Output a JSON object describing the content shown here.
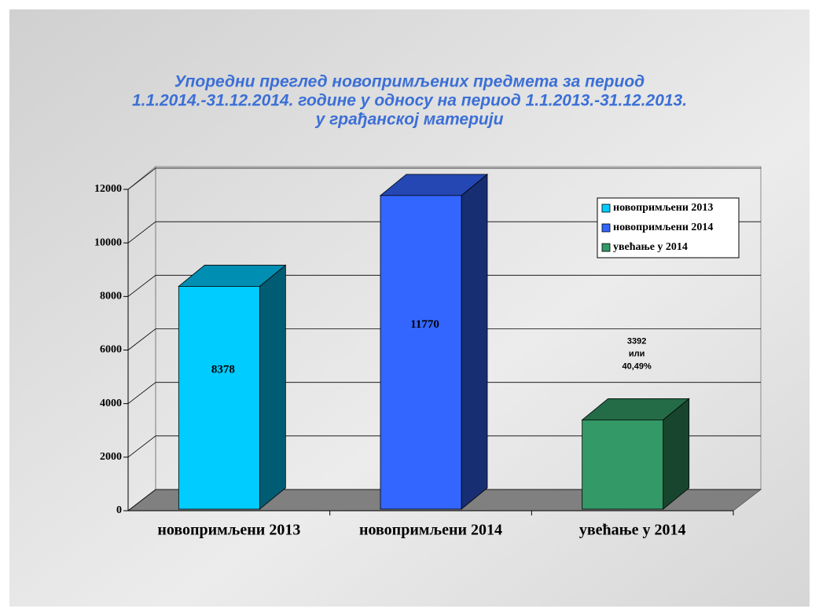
{
  "chart_data": {
    "type": "bar3d",
    "title": [
      "Упоредни преглед новопримљених предмета за период",
      "1.1.2014.-31.12.2014. године у односу на период 1.1.2013.-31.12.2013.",
      "у грађанској материји"
    ],
    "categories": [
      "новопримљени 2013",
      "новопримљени 2014",
      "увећање у 2014"
    ],
    "values": [
      8378,
      11770,
      3392
    ],
    "value_labels": [
      "8378",
      "11770",
      "3392 или 40,49%"
    ],
    "colors": [
      "#00ccff",
      "#3366ff",
      "#339966"
    ],
    "ylim": [
      0,
      12000
    ],
    "yticks": [
      0,
      2000,
      4000,
      6000,
      8000,
      10000,
      12000
    ],
    "grid": true,
    "legend": "upper right"
  }
}
